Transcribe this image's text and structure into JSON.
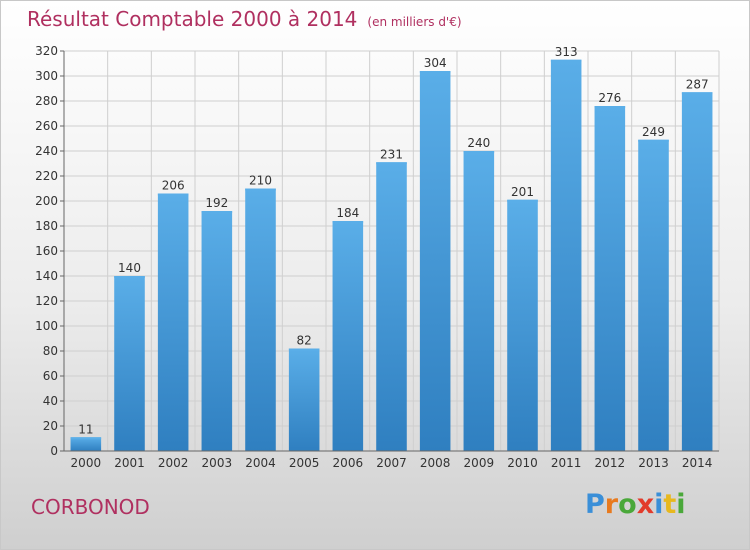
{
  "header": {
    "title": "Résultat Comptable 2000 à 2014",
    "subtitle": "(en milliers d'€)"
  },
  "footer": {
    "commune": "CORBONOD",
    "logo_letters": [
      "P",
      "r",
      "o",
      "x",
      "i",
      "t",
      "i"
    ],
    "logo_colors": [
      "#3a8fd8",
      "#e87a1e",
      "#4aa83a",
      "#e23b2b",
      "#3a8fd8",
      "#e8b81e",
      "#4aa83a"
    ]
  },
  "colors": {
    "bar_light": "#5aaee8",
    "bar_dark": "#2f7fc0",
    "grid": "#cfcfcf",
    "axis_text": "#333333"
  },
  "chart_data": {
    "type": "bar",
    "categories": [
      "2000",
      "2001",
      "2002",
      "2003",
      "2004",
      "2005",
      "2006",
      "2007",
      "2008",
      "2009",
      "2010",
      "2011",
      "2012",
      "2013",
      "2014"
    ],
    "values": [
      11,
      140,
      206,
      192,
      210,
      82,
      184,
      231,
      304,
      240,
      201,
      313,
      276,
      249,
      287
    ],
    "title": "Résultat Comptable 2000 à 2014",
    "subtitle": "(en milliers d'€)",
    "xlabel": "",
    "ylabel": "",
    "ylim": [
      0,
      320
    ],
    "ytick_step": 20,
    "grid": true
  }
}
